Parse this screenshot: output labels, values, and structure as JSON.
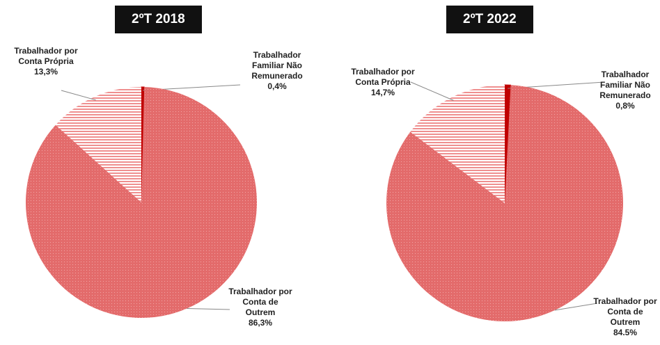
{
  "chart_data": [
    {
      "type": "pie",
      "title": "2ºT 2018",
      "categories": [
        "Trabalhador Familiar Não Remunerado",
        "Trabalhador por Conta de Outrem",
        "Trabalhador por Conta Própria"
      ],
      "values": [
        0.4,
        86.3,
        13.3
      ],
      "value_labels": [
        "0,4%",
        "86,3%",
        "13,3%"
      ],
      "colors": [
        "#c00000",
        "#e36b6b",
        "#ef8f8f"
      ]
    },
    {
      "type": "pie",
      "title": "2ºT 2022",
      "categories": [
        "Trabalhador Familiar Não Remunerado",
        "Trabalhador por Conta de Outrem",
        "Trabalhador por Conta Própria"
      ],
      "values": [
        0.8,
        84.5,
        14.7
      ],
      "value_labels": [
        "0,8%",
        "84.5%",
        "14,7%"
      ],
      "colors": [
        "#c00000",
        "#e36b6b",
        "#ef8f8f"
      ]
    }
  ]
}
